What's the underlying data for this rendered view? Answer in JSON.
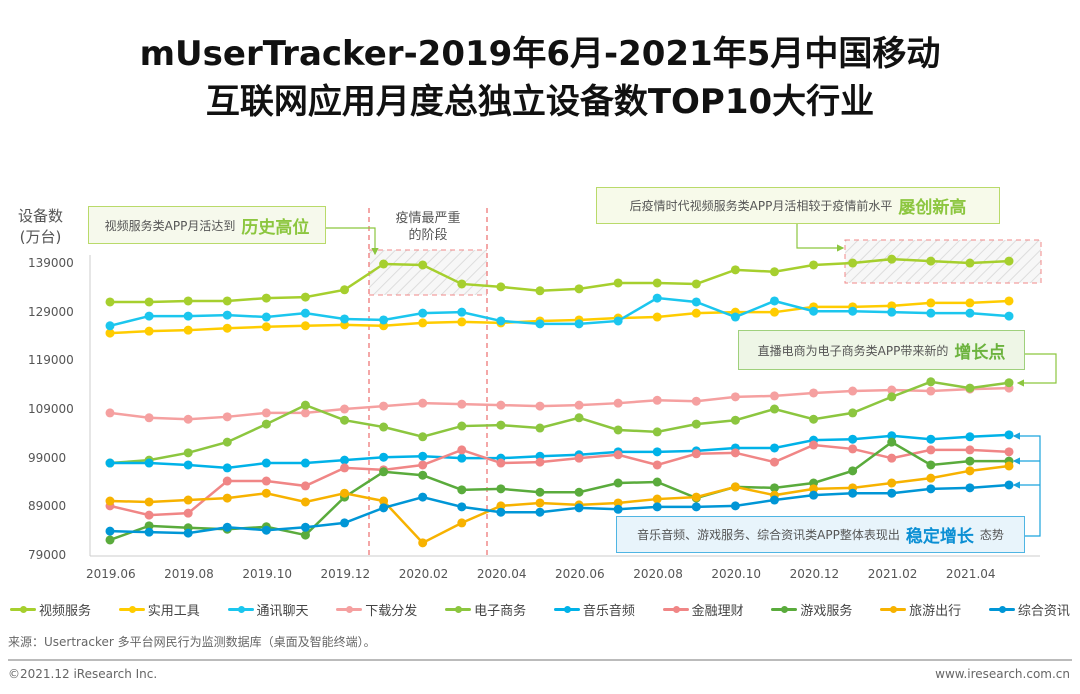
{
  "title": {
    "line1": "mUserTracker-2019年6月-2021年5月中国移动",
    "line2": "互联网应用月度总独立设备数TOP10大行业"
  },
  "chart_data": {
    "type": "line",
    "ylabel": "设备数\n(万台)",
    "ylabel_line1": "设备数",
    "ylabel_line2": "(万台)",
    "ylim": [
      79000,
      139000
    ],
    "yticks": [
      "139000",
      "129000",
      "119000",
      "109000",
      "99000",
      "89000",
      "79000"
    ],
    "ytick_values": [
      139000,
      129000,
      119000,
      109000,
      99000,
      89000,
      79000
    ],
    "x": [
      "2019.06",
      "2019.07",
      "2019.08",
      "2019.09",
      "2019.10",
      "2019.11",
      "2019.12",
      "2020.01",
      "2020.02",
      "2020.03",
      "2020.04",
      "2020.05",
      "2020.06",
      "2020.07",
      "2020.08",
      "2020.09",
      "2020.10",
      "2020.11",
      "2020.12",
      "2021.01",
      "2021.02",
      "2021.03",
      "2021.04",
      "2021.05"
    ],
    "xticks": [
      "2019.06",
      "2019.08",
      "2019.10",
      "2019.12",
      "2020.02",
      "2020.04",
      "2020.06",
      "2020.08",
      "2020.10",
      "2020.12",
      "2021.02",
      "2021.04"
    ],
    "grid": false,
    "legend_position": "bottom",
    "series": [
      {
        "name": "视频服务",
        "color": "#a6cf2e",
        "values": [
          131200,
          131200,
          131400,
          131400,
          132000,
          132200,
          133700,
          139000,
          138800,
          134900,
          134300,
          133500,
          133900,
          135100,
          135100,
          134900,
          137800,
          137400,
          138800,
          139200,
          140000,
          139600,
          139200,
          139600
        ]
      },
      {
        "name": "实用工具",
        "color": "#ffcc00",
        "values": [
          124800,
          125200,
          125400,
          125800,
          126100,
          126300,
          126500,
          126300,
          126900,
          127100,
          126900,
          127300,
          127500,
          127900,
          128100,
          128900,
          129100,
          129100,
          130200,
          130200,
          130400,
          131000,
          131000,
          131400
        ]
      },
      {
        "name": "通讯聊天",
        "color": "#1bc6ee",
        "values": [
          126300,
          128300,
          128300,
          128500,
          128100,
          128900,
          127700,
          127500,
          128900,
          129100,
          127300,
          126700,
          126700,
          127300,
          132000,
          131200,
          128100,
          131400,
          129300,
          129300,
          129100,
          128900,
          128900,
          128300
        ]
      },
      {
        "name": "下载分发",
        "color": "#f5a0a0",
        "values": [
          108400,
          107400,
          107100,
          107600,
          108400,
          108400,
          109200,
          109800,
          110400,
          110200,
          110000,
          109800,
          110000,
          110400,
          111000,
          110800,
          111700,
          111900,
          112500,
          112900,
          113100,
          112900,
          113300,
          113500
        ]
      },
      {
        "name": "电子商务",
        "color": "#8cc63f",
        "values": [
          98100,
          98700,
          100200,
          102400,
          106100,
          110000,
          106900,
          105500,
          103500,
          105700,
          105900,
          105300,
          107400,
          104900,
          104500,
          106100,
          106900,
          109200,
          107100,
          108400,
          111700,
          114800,
          113500,
          114600
        ]
      },
      {
        "name": "音乐音频",
        "color": "#00b2e8",
        "values": [
          98100,
          98100,
          97700,
          97100,
          98100,
          98100,
          98700,
          99300,
          99500,
          99100,
          99100,
          99500,
          99800,
          100400,
          100400,
          100600,
          101200,
          101200,
          102800,
          103000,
          103700,
          103000,
          103500,
          103900
        ]
      },
      {
        "name": "金融理财",
        "color": "#f08686",
        "values": [
          89300,
          87400,
          87800,
          94400,
          94400,
          93400,
          97100,
          96700,
          97700,
          100800,
          98100,
          98300,
          99100,
          99800,
          97700,
          100000,
          100200,
          98300,
          101800,
          101000,
          99100,
          100800,
          100800,
          100400
        ]
      },
      {
        "name": "游戏服务",
        "color": "#5aab3c",
        "values": [
          82300,
          85200,
          84800,
          84500,
          85000,
          83300,
          91100,
          96300,
          95600,
          92600,
          92800,
          92100,
          92100,
          94000,
          94200,
          90900,
          93200,
          93000,
          94000,
          96500,
          102400,
          97700,
          98500,
          98500
        ]
      },
      {
        "name": "旅游出行",
        "color": "#f7b200",
        "values": [
          90300,
          90100,
          90500,
          90900,
          91900,
          90100,
          91900,
          90300,
          81700,
          85800,
          89300,
          89900,
          89500,
          89900,
          90700,
          91100,
          93200,
          91500,
          92800,
          93000,
          94000,
          95000,
          96500,
          97500
        ]
      },
      {
        "name": "综合资讯",
        "color": "#0096d6",
        "values": [
          84100,
          83900,
          83700,
          84900,
          84300,
          84900,
          85800,
          88900,
          91100,
          89100,
          88000,
          88000,
          88900,
          88600,
          89100,
          89100,
          89300,
          90500,
          91500,
          91900,
          91900,
          92800,
          93000,
          93600
        ]
      }
    ],
    "annotations": {
      "peak": {
        "text": "视频服务类APP月活达到",
        "highlight": "历史高位",
        "color": "#8cc63f"
      },
      "pandemic": {
        "line1": "疫情最严重",
        "line2": "的阶段"
      },
      "post": {
        "text": "后疫情时代视频服务类APP月活相较于疫情前水平",
        "highlight": "屡创新高",
        "color": "#8cc63f"
      },
      "ecommerce": {
        "text": "直播电商为电子商务类APP带来新的",
        "highlight": "增长点",
        "color": "#8cc63f"
      },
      "steady": {
        "text": "音乐音频、游戏服务、综合资讯类APP整体表现出",
        "highlight": "稳定增长",
        "suffix": "态势",
        "color": "#0b8fd4"
      }
    }
  },
  "source": "来源：Usertracker 多平台网民行为监测数据库（桌面及智能终端）。",
  "footer": {
    "copyright": "©2021.12 iResearch Inc.",
    "website": "www.iresearch.com.cn"
  }
}
